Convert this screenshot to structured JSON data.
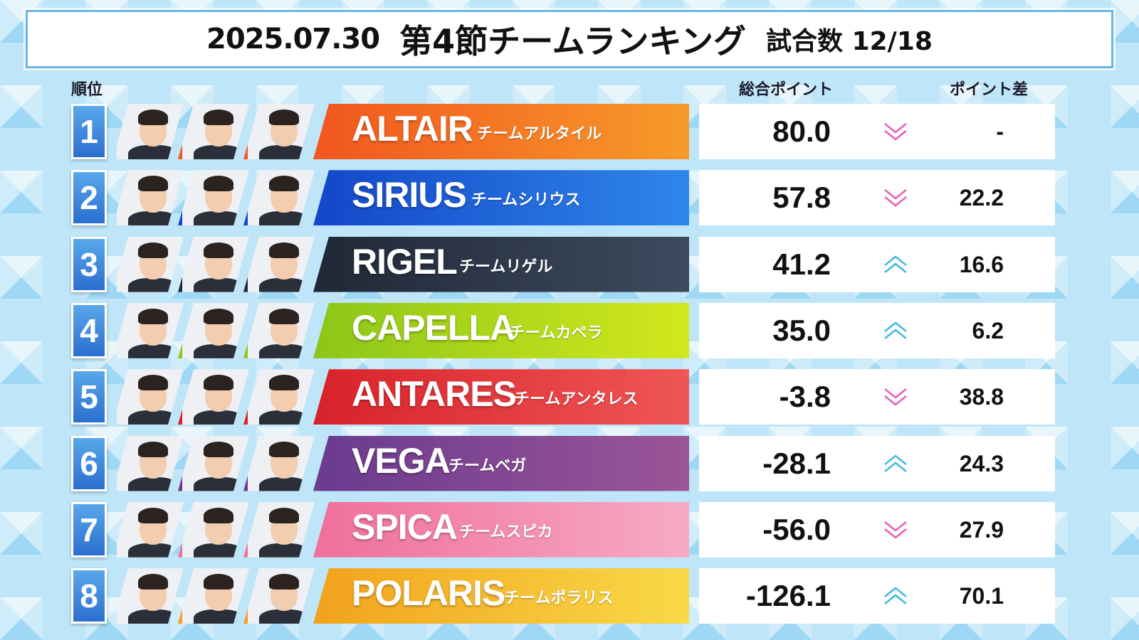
{
  "header": {
    "date": "2025.07.30",
    "title": "第4節チームランキング",
    "match_count": "試合数 12/18"
  },
  "columns": {
    "rank": "順位",
    "total": "総合ポイント",
    "diff": "ポイント差"
  },
  "teams": [
    {
      "rank": "1",
      "name": "ALTAIR",
      "jp": "チームアルタイル",
      "total": "80.0",
      "diff": "-",
      "trend": "down",
      "color_from": "#f2561f",
      "color_to": "#f79a2a",
      "stripe": "#f2561f"
    },
    {
      "rank": "2",
      "name": "SIRIUS",
      "jp": "チームシリウス",
      "total": "57.8",
      "diff": "22.2",
      "trend": "down",
      "color_from": "#1347c8",
      "color_to": "#2f86ea",
      "stripe": "#1347c8"
    },
    {
      "rank": "3",
      "name": "RIGEL",
      "jp": "チームリゲル",
      "total": "41.2",
      "diff": "16.6",
      "trend": "up",
      "color_from": "#1f2836",
      "color_to": "#3e4a5e",
      "stripe": "#1f2836"
    },
    {
      "rank": "4",
      "name": "CAPELLA",
      "jp": "チームカペラ",
      "total": "35.0",
      "diff": "6.2",
      "trend": "up",
      "color_from": "#8cc619",
      "color_to": "#d2e81d",
      "stripe": "#8cc619"
    },
    {
      "rank": "5",
      "name": "ANTARES",
      "jp": "チームアンタレス",
      "total": "-3.8",
      "diff": "38.8",
      "trend": "down",
      "color_from": "#d8222a",
      "color_to": "#ef5655",
      "stripe": "#d8222a"
    },
    {
      "rank": "6",
      "name": "VEGA",
      "jp": "チームベガ",
      "total": "-28.1",
      "diff": "24.3",
      "trend": "up",
      "color_from": "#6a3b8f",
      "color_to": "#9b5597",
      "stripe": "#6a3b8f"
    },
    {
      "rank": "7",
      "name": "SPICA",
      "jp": "チームスピカ",
      "total": "-56.0",
      "diff": "27.9",
      "trend": "down",
      "color_from": "#ef6f9a",
      "color_to": "#f7aac4",
      "stripe": "#ef6f9a"
    },
    {
      "rank": "8",
      "name": "POLARIS",
      "jp": "チームポラリス",
      "total": "-126.1",
      "diff": "70.1",
      "trend": "up",
      "color_from": "#f2a21d",
      "color_to": "#f8d948",
      "stripe": "#f2a21d"
    }
  ],
  "colors": {
    "trend_up": "#3fb8e8",
    "trend_down": "#e55fb5"
  }
}
